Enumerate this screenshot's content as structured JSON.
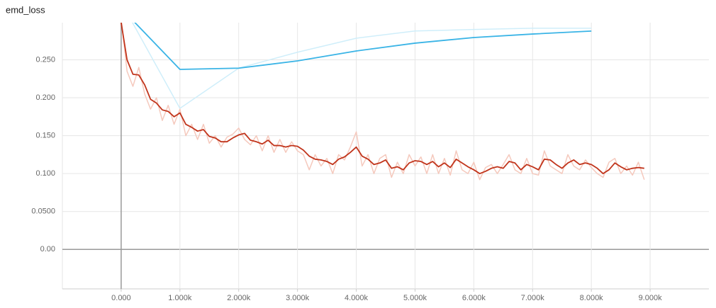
{
  "chart_data": {
    "type": "line",
    "title": "emd_loss",
    "xlim": [
      -1000,
      10000
    ],
    "ylim": [
      -0.052,
      0.299
    ],
    "grid": true,
    "xticks": [
      {
        "value": 0,
        "label": "0.000"
      },
      {
        "value": 1000,
        "label": "1.000k"
      },
      {
        "value": 2000,
        "label": "2.000k"
      },
      {
        "value": 3000,
        "label": "3.000k"
      },
      {
        "value": 4000,
        "label": "4.000k"
      },
      {
        "value": 5000,
        "label": "5.000k"
      },
      {
        "value": 6000,
        "label": "6.000k"
      },
      {
        "value": 7000,
        "label": "7.000k"
      },
      {
        "value": 8000,
        "label": "8.000k"
      },
      {
        "value": 9000,
        "label": "9.000k"
      }
    ],
    "yticks": [
      {
        "value": 0,
        "label": "0.00"
      },
      {
        "value": 0.05,
        "label": "0.0500"
      },
      {
        "value": 0.1,
        "label": "0.100"
      },
      {
        "value": 0.15,
        "label": "0.150"
      },
      {
        "value": 0.2,
        "label": "0.200"
      },
      {
        "value": 0.25,
        "label": "0.250"
      }
    ],
    "series": [
      {
        "color": "#cfeefa",
        "width": 1.5,
        "x": [
          0,
          1000,
          2000,
          3000,
          4000,
          5000,
          6000,
          7000,
          8000
        ],
        "values": [
          0.326,
          0.186,
          0.239,
          0.26,
          0.2785,
          0.288,
          0.29,
          0.2916,
          0.2916
        ]
      },
      {
        "color": "#3ab4e6",
        "width": 1.8,
        "x": [
          0,
          1000,
          2000,
          3000,
          4000,
          5000,
          6000,
          7000,
          8000
        ],
        "values": [
          0.318,
          0.2374,
          0.239,
          0.2486,
          0.2617,
          0.272,
          0.2794,
          0.284,
          0.2879
        ]
      },
      {
        "color": "#f5c9bd",
        "width": 1.5,
        "x": [
          0,
          100,
          200,
          300,
          400,
          500,
          600,
          700,
          800,
          900,
          1000,
          1100,
          1200,
          1300,
          1400,
          1500,
          1600,
          1700,
          1800,
          1900,
          2000,
          2100,
          2200,
          2300,
          2400,
          2500,
          2600,
          2700,
          2800,
          2900,
          3000,
          3100,
          3200,
          3300,
          3400,
          3500,
          3600,
          3700,
          3800,
          3900,
          4000,
          4100,
          4200,
          4300,
          4400,
          4500,
          4600,
          4700,
          4800,
          4900,
          5000,
          5100,
          5200,
          5300,
          5400,
          5500,
          5600,
          5700,
          5800,
          5900,
          6000,
          6100,
          6200,
          6300,
          6400,
          6500,
          6600,
          6700,
          6800,
          6900,
          7000,
          7100,
          7200,
          7300,
          7400,
          7500,
          7600,
          7700,
          7800,
          7900,
          8000,
          8100,
          8200,
          8300,
          8400,
          8500,
          8600,
          8700,
          8800,
          8900
        ],
        "values": [
          0.305,
          0.235,
          0.215,
          0.24,
          0.205,
          0.185,
          0.2,
          0.17,
          0.19,
          0.165,
          0.185,
          0.15,
          0.165,
          0.145,
          0.165,
          0.14,
          0.15,
          0.135,
          0.148,
          0.152,
          0.16,
          0.145,
          0.138,
          0.15,
          0.13,
          0.15,
          0.128,
          0.145,
          0.128,
          0.142,
          0.13,
          0.125,
          0.105,
          0.125,
          0.11,
          0.12,
          0.1,
          0.125,
          0.118,
          0.135,
          0.155,
          0.11,
          0.125,
          0.1,
          0.12,
          0.125,
          0.095,
          0.115,
          0.1,
          0.125,
          0.11,
          0.122,
          0.1,
          0.125,
          0.1,
          0.12,
          0.098,
          0.13,
          0.105,
          0.1,
          0.115,
          0.092,
          0.108,
          0.112,
          0.1,
          0.112,
          0.125,
          0.105,
          0.1,
          0.12,
          0.1,
          0.098,
          0.13,
          0.11,
          0.105,
          0.1,
          0.125,
          0.11,
          0.105,
          0.118,
          0.108,
          0.1,
          0.095,
          0.115,
          0.12,
          0.1,
          0.11,
          0.098,
          0.115,
          0.092
        ]
      },
      {
        "color": "#c1341b",
        "width": 1.8,
        "x": [
          0,
          100,
          200,
          300,
          400,
          500,
          600,
          700,
          800,
          900,
          1000,
          1100,
          1200,
          1300,
          1400,
          1500,
          1600,
          1700,
          1800,
          1900,
          2000,
          2100,
          2200,
          2300,
          2400,
          2500,
          2600,
          2700,
          2800,
          2900,
          3000,
          3100,
          3200,
          3300,
          3400,
          3500,
          3600,
          3700,
          3800,
          3900,
          4000,
          4100,
          4200,
          4300,
          4400,
          4500,
          4600,
          4700,
          4800,
          4900,
          5000,
          5100,
          5200,
          5300,
          5400,
          5500,
          5600,
          5700,
          5800,
          5900,
          6000,
          6100,
          6200,
          6300,
          6400,
          6500,
          6600,
          6700,
          6800,
          6900,
          7000,
          7100,
          7200,
          7300,
          7400,
          7500,
          7600,
          7700,
          7800,
          7900,
          8000,
          8100,
          8200,
          8300,
          8400,
          8500,
          8600,
          8700,
          8800,
          8900
        ],
        "values": [
          0.299,
          0.25,
          0.231,
          0.23,
          0.217,
          0.198,
          0.193,
          0.184,
          0.182,
          0.175,
          0.18,
          0.165,
          0.161,
          0.156,
          0.158,
          0.149,
          0.147,
          0.142,
          0.142,
          0.147,
          0.151,
          0.153,
          0.144,
          0.142,
          0.139,
          0.144,
          0.137,
          0.137,
          0.135,
          0.137,
          0.136,
          0.131,
          0.123,
          0.119,
          0.118,
          0.116,
          0.112,
          0.119,
          0.122,
          0.128,
          0.135,
          0.123,
          0.119,
          0.112,
          0.114,
          0.118,
          0.107,
          0.109,
          0.105,
          0.114,
          0.117,
          0.116,
          0.112,
          0.116,
          0.109,
          0.114,
          0.108,
          0.119,
          0.114,
          0.109,
          0.105,
          0.1,
          0.103,
          0.107,
          0.109,
          0.107,
          0.116,
          0.114,
          0.105,
          0.112,
          0.109,
          0.105,
          0.119,
          0.118,
          0.112,
          0.107,
          0.114,
          0.118,
          0.112,
          0.114,
          0.112,
          0.107,
          0.1,
          0.105,
          0.114,
          0.109,
          0.105,
          0.107,
          0.108,
          0.107
        ]
      }
    ]
  }
}
